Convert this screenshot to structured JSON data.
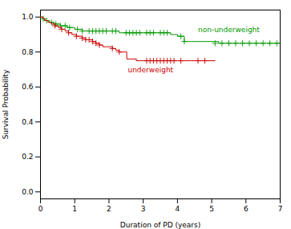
{
  "chart_data": {
    "type": "line",
    "line_style": "step",
    "marker": "plus",
    "xlabel": "Duration of PD (years)",
    "ylabel": "Survival Probability",
    "xlim": [
      0,
      7
    ],
    "ylim": [
      -0.04,
      1.04
    ],
    "xticks": [
      0,
      1,
      2,
      3,
      4,
      5,
      6,
      7
    ],
    "yticks": [
      {
        "value": 0,
        "label": "0.0"
      },
      0.2,
      0.4,
      0.6,
      0.8,
      {
        "value": 1,
        "label": "1.0"
      }
    ],
    "grid": false,
    "series": [
      {
        "name": "non-underweight",
        "color": "#009900",
        "label_x": 4.6,
        "label_y": 0.925,
        "x": [
          0,
          0.08,
          0.12,
          0.18,
          0.25,
          0.32,
          0.38,
          0.45,
          0.52,
          0.58,
          0.65,
          0.72,
          0.78,
          0.85,
          0.92,
          1.0,
          1.08,
          1.15,
          1.22,
          1.32,
          1.42,
          1.52,
          1.62,
          1.72,
          1.82,
          1.92,
          2.0,
          2.1,
          2.2,
          2.3,
          2.4,
          2.5,
          2.6,
          2.7,
          2.8,
          2.9,
          3.0,
          3.1,
          3.2,
          3.3,
          3.4,
          3.5,
          3.6,
          3.7,
          3.8,
          4.0,
          4.1,
          4.2,
          4.4,
          5.0,
          5.1,
          5.2,
          5.4,
          5.6,
          5.8,
          6.0,
          6.2,
          6.4,
          6.6,
          6.8,
          7.0
        ],
        "values": [
          1.0,
          0.99,
          0.98,
          0.98,
          0.97,
          0.97,
          0.96,
          0.96,
          0.96,
          0.95,
          0.95,
          0.95,
          0.94,
          0.94,
          0.94,
          0.93,
          0.93,
          0.93,
          0.92,
          0.92,
          0.92,
          0.92,
          0.92,
          0.92,
          0.92,
          0.92,
          0.92,
          0.92,
          0.92,
          0.91,
          0.91,
          0.91,
          0.91,
          0.91,
          0.91,
          0.91,
          0.91,
          0.91,
          0.91,
          0.91,
          0.91,
          0.91,
          0.91,
          0.91,
          0.9,
          0.89,
          0.89,
          0.86,
          0.86,
          0.86,
          0.86,
          0.85,
          0.85,
          0.85,
          0.85,
          0.85,
          0.85,
          0.85,
          0.85,
          0.85,
          0.85
        ],
        "censor_x": [
          0.08,
          0.18,
          0.32,
          0.45,
          0.58,
          0.72,
          0.85,
          1.08,
          1.22,
          1.42,
          1.52,
          1.62,
          1.72,
          1.82,
          1.92,
          2.1,
          2.2,
          2.5,
          2.6,
          2.7,
          2.8,
          2.9,
          3.1,
          3.2,
          3.3,
          3.5,
          3.6,
          3.7,
          4.1,
          4.2,
          5.1,
          5.3,
          5.5,
          5.7,
          5.9,
          6.1,
          6.3,
          6.5,
          6.7,
          6.9
        ],
        "censor_y": [
          0.99,
          0.98,
          0.97,
          0.96,
          0.95,
          0.95,
          0.94,
          0.93,
          0.92,
          0.92,
          0.92,
          0.92,
          0.92,
          0.92,
          0.92,
          0.92,
          0.92,
          0.91,
          0.91,
          0.91,
          0.91,
          0.91,
          0.91,
          0.91,
          0.91,
          0.91,
          0.91,
          0.91,
          0.89,
          0.86,
          0.85,
          0.85,
          0.85,
          0.85,
          0.85,
          0.85,
          0.85,
          0.85,
          0.85,
          0.85
        ]
      },
      {
        "name": "underweight",
        "color": "#cc0000",
        "label_x": 2.55,
        "label_y": 0.695,
        "x": [
          0,
          0.07,
          0.13,
          0.22,
          0.32,
          0.42,
          0.52,
          0.62,
          0.72,
          0.82,
          0.92,
          1.0,
          1.05,
          1.12,
          1.22,
          1.32,
          1.42,
          1.52,
          1.62,
          1.72,
          1.82,
          1.92,
          2.0,
          2.1,
          2.2,
          2.3,
          2.4,
          2.52,
          2.62,
          2.7,
          2.8,
          2.9,
          3.0,
          3.1,
          3.2,
          3.3,
          3.4,
          3.5,
          3.6,
          3.7,
          3.8,
          3.9,
          4.0,
          4.1,
          4.2,
          4.4,
          4.6,
          4.8,
          5.0,
          5.1
        ],
        "values": [
          1.0,
          0.99,
          0.98,
          0.97,
          0.96,
          0.95,
          0.94,
          0.93,
          0.92,
          0.91,
          0.9,
          0.9,
          0.89,
          0.89,
          0.88,
          0.87,
          0.87,
          0.86,
          0.85,
          0.84,
          0.83,
          0.83,
          0.83,
          0.82,
          0.81,
          0.8,
          0.8,
          0.76,
          0.76,
          0.76,
          0.75,
          0.75,
          0.75,
          0.75,
          0.75,
          0.75,
          0.75,
          0.75,
          0.75,
          0.75,
          0.75,
          0.75,
          0.75,
          0.75,
          0.75,
          0.75,
          0.75,
          0.75,
          0.75,
          0.75
        ],
        "censor_x": [
          0.42,
          0.62,
          0.82,
          1.05,
          1.22,
          1.32,
          1.42,
          1.52,
          1.62,
          1.72,
          2.1,
          2.3,
          3.1,
          3.2,
          3.3,
          3.4,
          3.5,
          3.6,
          3.7,
          3.8,
          3.9,
          4.1,
          4.6,
          4.8
        ],
        "censor_y": [
          0.95,
          0.93,
          0.91,
          0.89,
          0.88,
          0.87,
          0.87,
          0.86,
          0.85,
          0.84,
          0.82,
          0.8,
          0.75,
          0.75,
          0.75,
          0.75,
          0.75,
          0.75,
          0.75,
          0.75,
          0.75,
          0.75,
          0.75,
          0.75
        ]
      }
    ]
  }
}
